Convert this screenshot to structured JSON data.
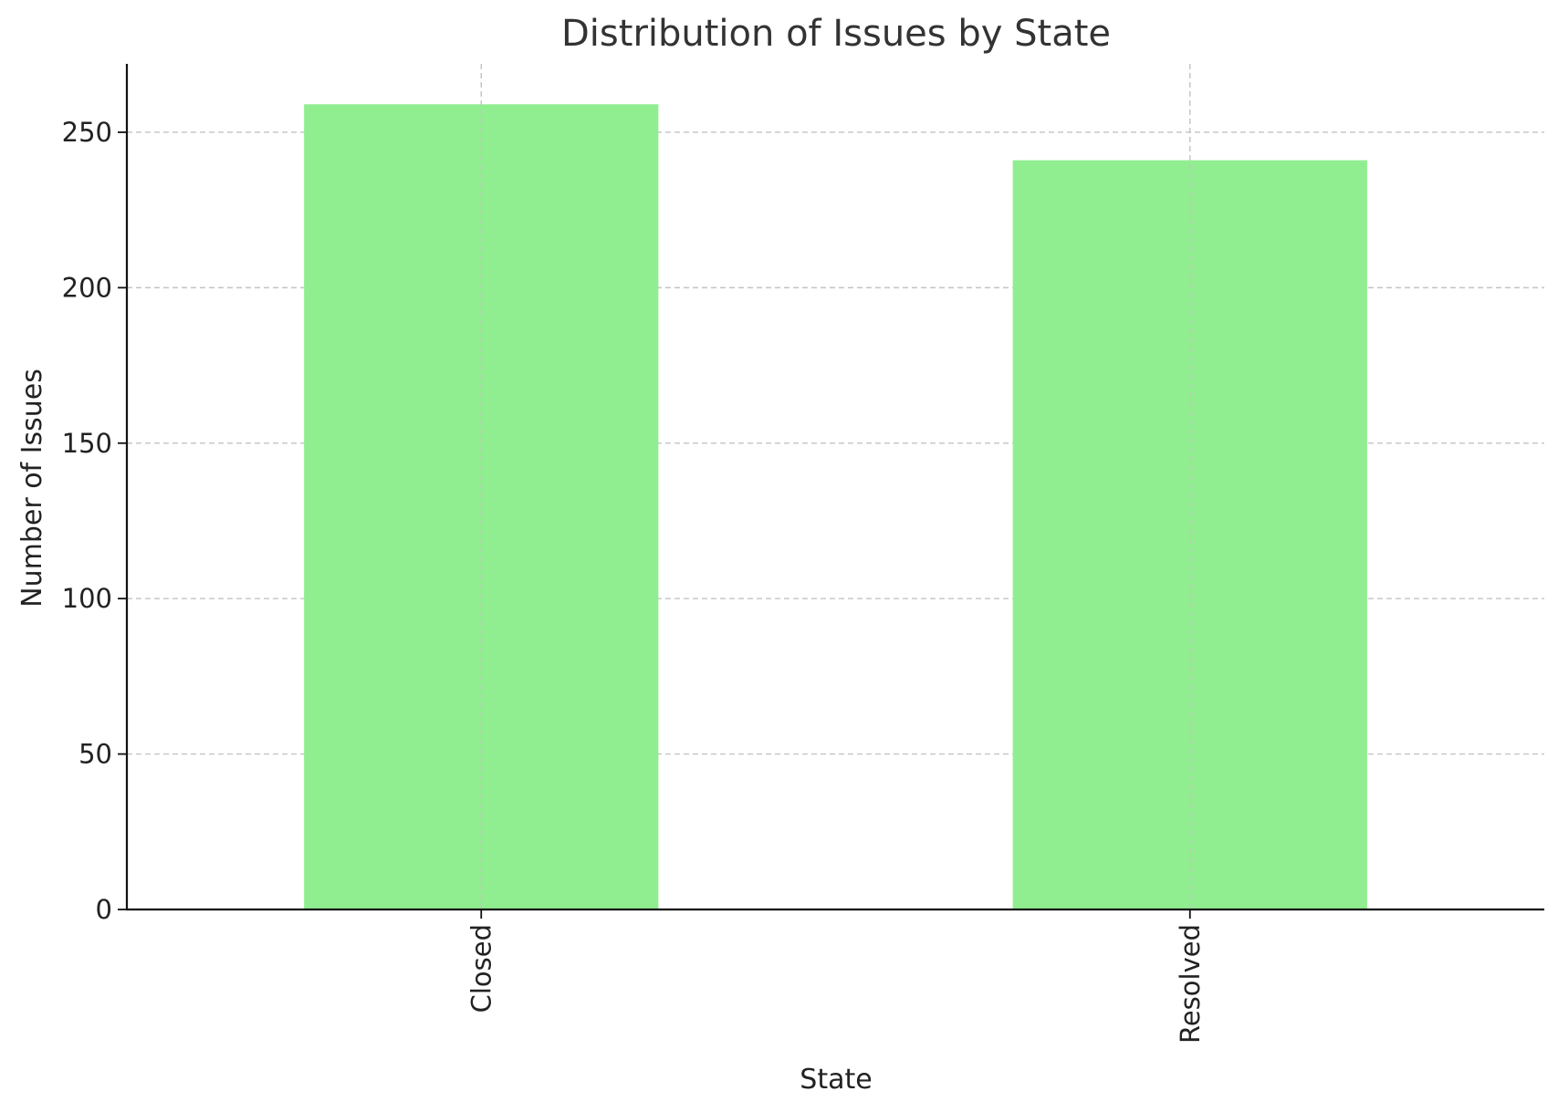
{
  "chart_data": {
    "type": "bar",
    "title": "Distribution of Issues by State",
    "xlabel": "State",
    "ylabel": "Number of Issues",
    "categories": [
      "Closed",
      "Resolved"
    ],
    "values": [
      259,
      241
    ],
    "ylim": [
      0,
      272
    ],
    "yticks": [
      0,
      50,
      100,
      150,
      200,
      250
    ],
    "bar_color": "#90ee90",
    "grid": true,
    "x_tick_rotation": "vertical"
  }
}
